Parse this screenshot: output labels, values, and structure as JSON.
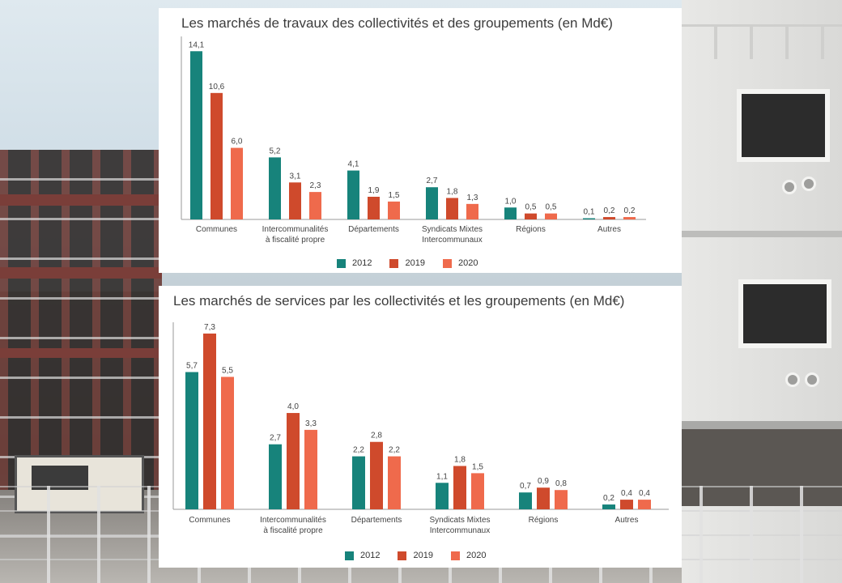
{
  "colors": {
    "2012": "#17837b",
    "2019": "#cf4a2c",
    "2020": "#ef6a4c",
    "axis": "#9a9a9a",
    "label": "#444444"
  },
  "chart_data": [
    {
      "type": "bar",
      "title": "Les marchés de travaux des collectivités et des groupements (en Md€)",
      "categories": [
        "Communes",
        "Intercommunalités\nà fiscalité propre",
        "Départements",
        "Syndicats Mixtes\nIntercommunaux",
        "Régions",
        "Autres"
      ],
      "series": [
        {
          "name": "2012",
          "values": [
            14.1,
            5.2,
            4.1,
            2.7,
            1.0,
            0.1
          ],
          "labels": [
            "14,1",
            "5,2",
            "4,1",
            "2,7",
            "1,0",
            "0,1"
          ]
        },
        {
          "name": "2019",
          "values": [
            10.6,
            3.1,
            1.9,
            1.8,
            0.5,
            0.2
          ],
          "labels": [
            "10,6",
            "3,1",
            "1,9",
            "1,8",
            "0,5",
            "0,2"
          ]
        },
        {
          "name": "2020",
          "values": [
            6.0,
            2.3,
            1.5,
            1.3,
            0.5,
            0.2
          ],
          "labels": [
            "6,0",
            "2,3",
            "1,5",
            "1,3",
            "0,5",
            "0,2"
          ]
        }
      ],
      "ylim": [
        0,
        15
      ],
      "legend": "bottom-center",
      "grid": false
    },
    {
      "type": "bar",
      "title": "Les marchés de services par les collectivités et les groupements (en Md€)",
      "categories": [
        "Communes",
        "Intercommunalités\nà fiscalité propre",
        "Départements",
        "Syndicats Mixtes\nIntercommunaux",
        "Régions",
        "Autres"
      ],
      "series": [
        {
          "name": "2012",
          "values": [
            5.7,
            2.7,
            2.2,
            1.1,
            0.7,
            0.2
          ],
          "labels": [
            "5,7",
            "2,7",
            "2,2",
            "1,1",
            "0,7",
            "0,2"
          ]
        },
        {
          "name": "2019",
          "values": [
            7.3,
            4.0,
            2.8,
            1.8,
            0.9,
            0.4
          ],
          "labels": [
            "7,3",
            "4,0",
            "2,8",
            "1,8",
            "0,9",
            "0,4"
          ]
        },
        {
          "name": "2020",
          "values": [
            5.5,
            3.3,
            2.2,
            1.5,
            0.8,
            0.4
          ],
          "labels": [
            "5,5",
            "3,3",
            "2,2",
            "1,5",
            "0,8",
            "0,4"
          ]
        }
      ],
      "ylim": [
        0,
        7.6
      ],
      "legend": "bottom-center",
      "grid": false
    }
  ]
}
